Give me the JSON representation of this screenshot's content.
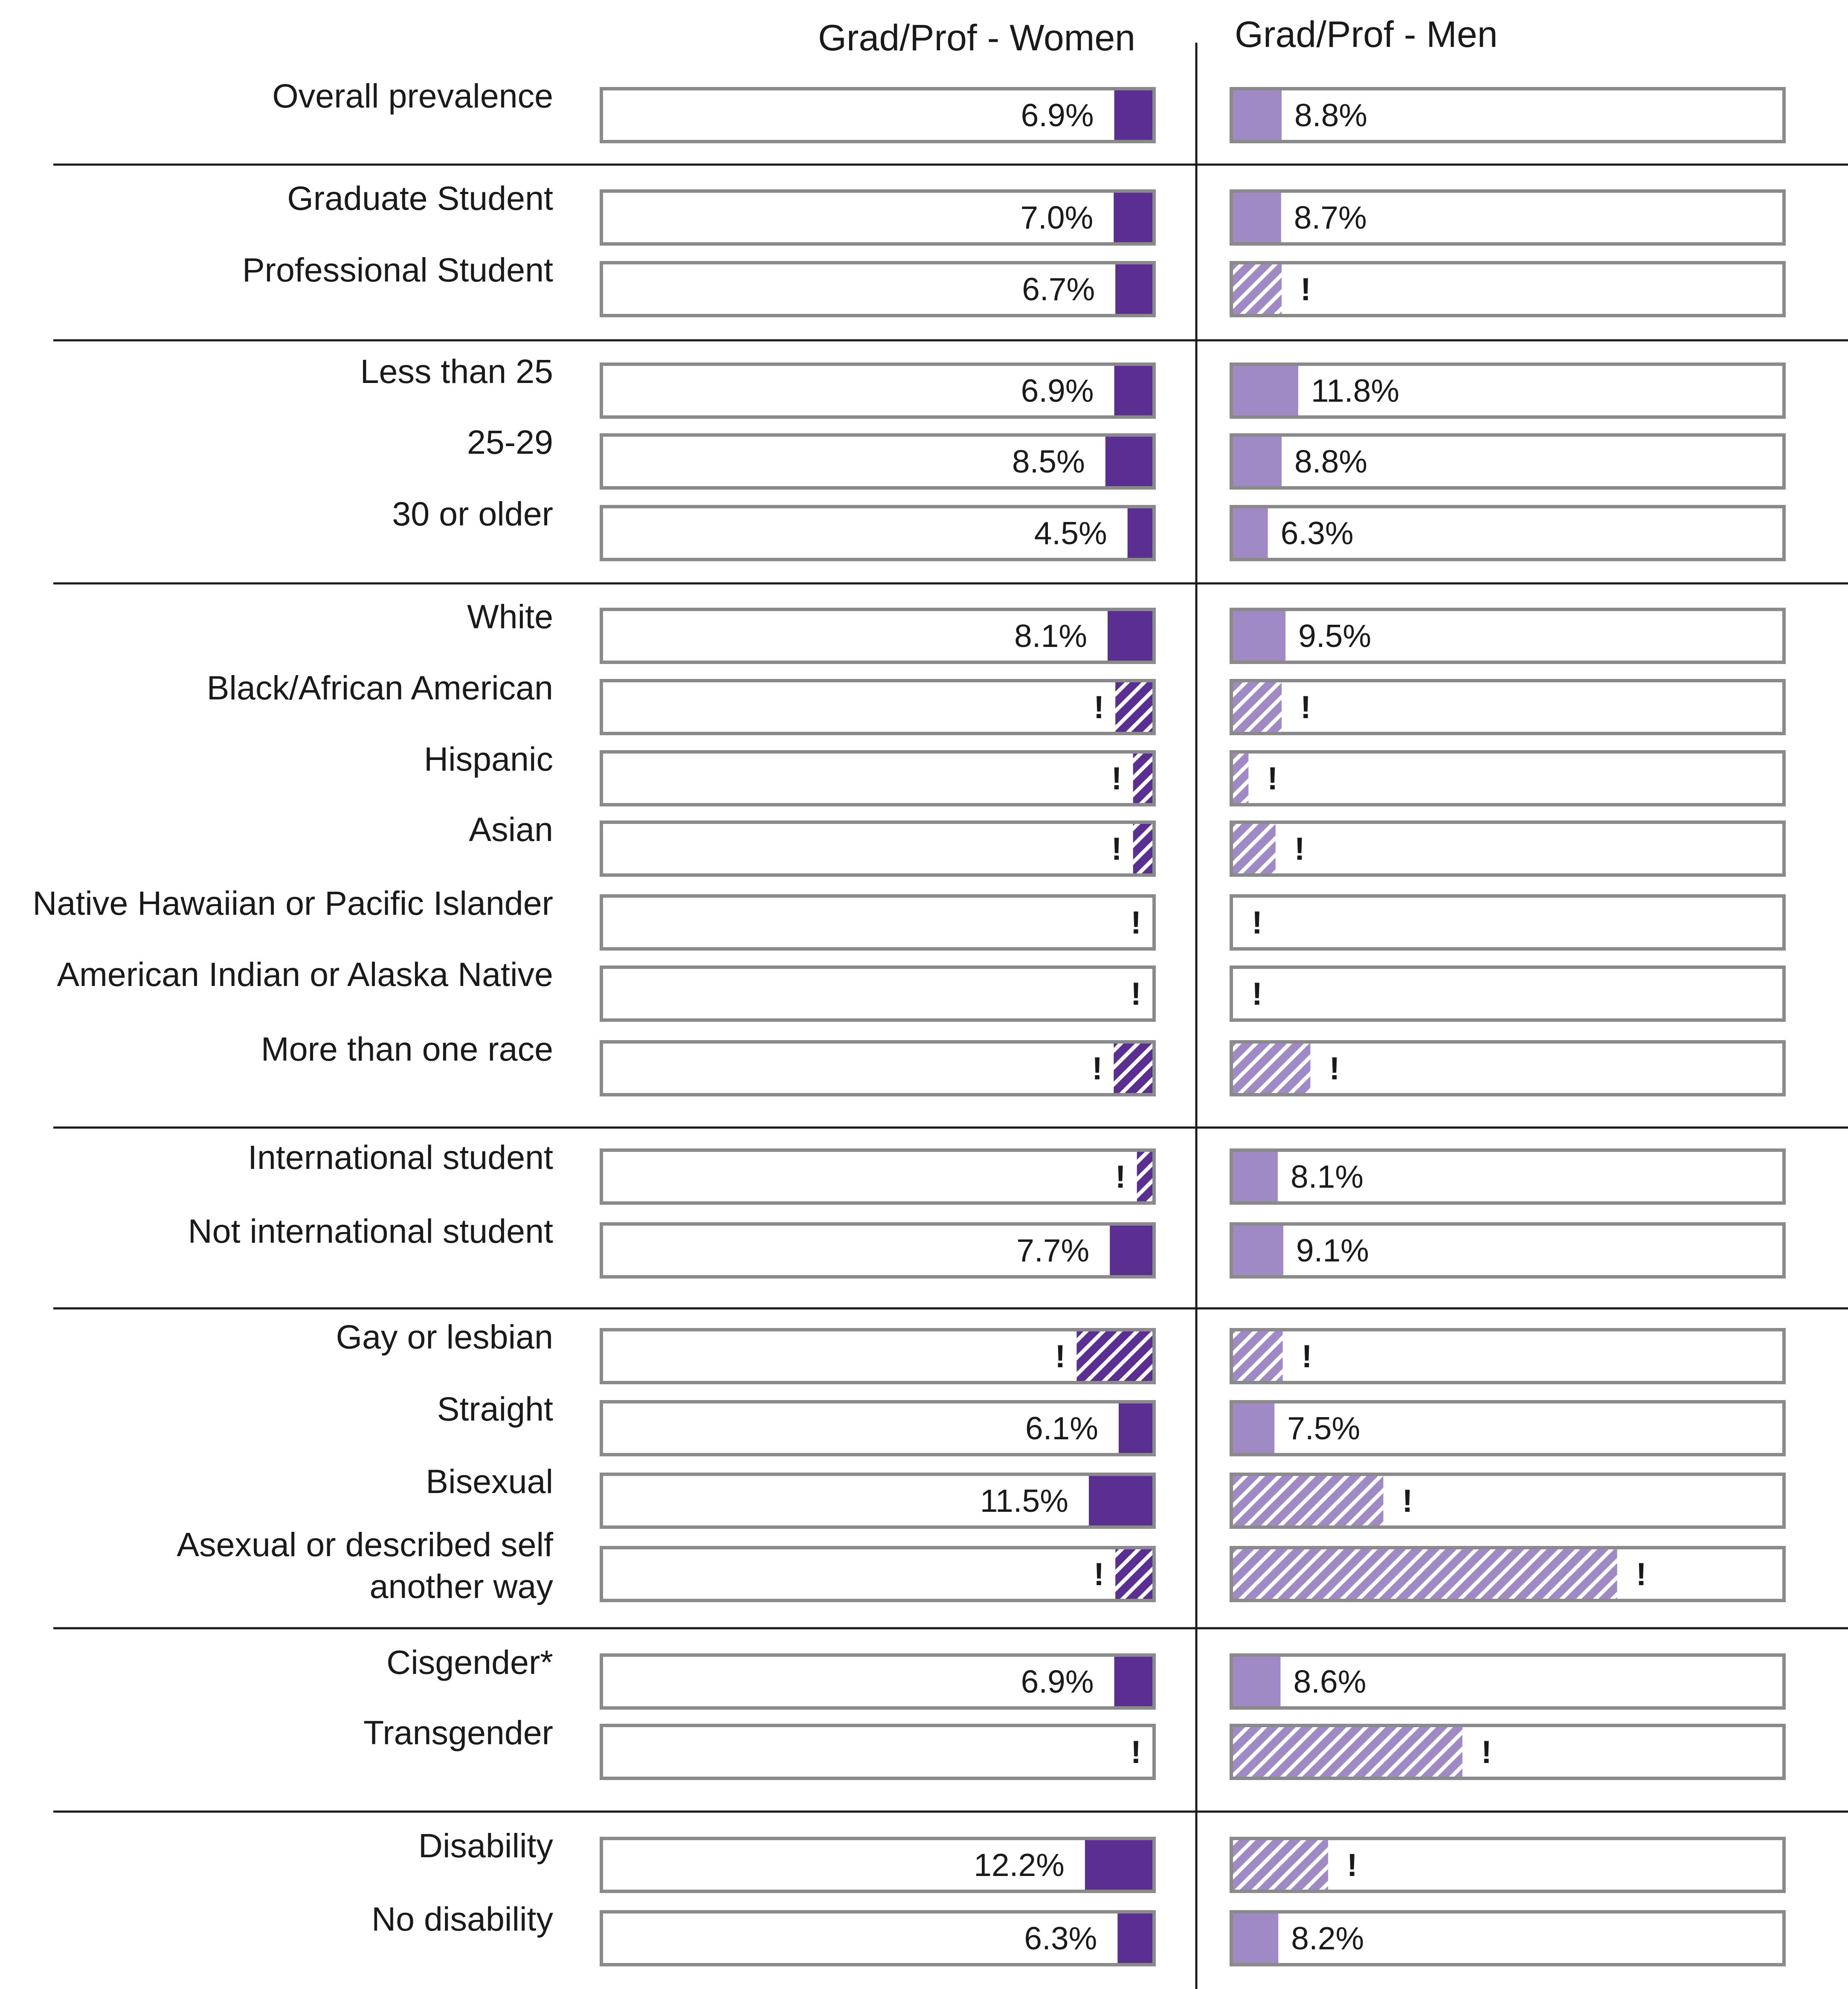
{
  "chart_data": {
    "type": "bar",
    "columns": [
      {
        "name": "Grad/Prof - Women",
        "color": "#5b2e91"
      },
      {
        "name": "Grad/Prof - Men",
        "color": "#9f8ac6"
      }
    ],
    "value_format": "%",
    "suppressed_marker": "!",
    "rows": [
      {
        "label": "Overall prevalence",
        "women": 6.9,
        "women_suppressed": false,
        "men": 8.8,
        "men_suppressed": false
      },
      {
        "label": "Graduate Student",
        "women": 7.0,
        "women_suppressed": false,
        "men": 8.7,
        "men_suppressed": false
      },
      {
        "label": "Professional Student",
        "women": 6.7,
        "women_suppressed": false,
        "men": 8.8,
        "men_suppressed": true
      },
      {
        "label": "Less than 25",
        "women": 6.9,
        "women_suppressed": false,
        "men": 11.8,
        "men_suppressed": false
      },
      {
        "label": "25-29",
        "women": 8.5,
        "women_suppressed": false,
        "men": 8.8,
        "men_suppressed": false
      },
      {
        "label": "30 or older",
        "women": 4.5,
        "women_suppressed": false,
        "men": 6.3,
        "men_suppressed": false
      },
      {
        "label": "White",
        "women": 8.1,
        "women_suppressed": false,
        "men": 9.5,
        "men_suppressed": false
      },
      {
        "label": "Black/African American",
        "women": 6.7,
        "women_suppressed": true,
        "men": 8.8,
        "men_suppressed": true
      },
      {
        "label": "Hispanic",
        "women": 3.5,
        "women_suppressed": true,
        "men": 2.8,
        "men_suppressed": true
      },
      {
        "label": "Asian",
        "women": 3.5,
        "women_suppressed": true,
        "men": 7.7,
        "men_suppressed": true
      },
      {
        "label": "Native Hawaiian or Pacific Islander",
        "women": 0,
        "women_suppressed": true,
        "men": 0,
        "men_suppressed": true
      },
      {
        "label": "American Indian or Alaska Native",
        "women": 0,
        "women_suppressed": true,
        "men": 0,
        "men_suppressed": true
      },
      {
        "label": "More than one race",
        "women": 7.0,
        "women_suppressed": true,
        "men": 14.0,
        "men_suppressed": true
      },
      {
        "label": "International student",
        "women": 2.8,
        "women_suppressed": true,
        "men": 8.1,
        "men_suppressed": false
      },
      {
        "label": "Not  international student",
        "women": 7.7,
        "women_suppressed": false,
        "men": 9.1,
        "men_suppressed": false
      },
      {
        "label": "Gay or lesbian",
        "women": 13.7,
        "women_suppressed": true,
        "men": 9.0,
        "men_suppressed": true
      },
      {
        "label": "Straight",
        "women": 6.1,
        "women_suppressed": false,
        "men": 7.5,
        "men_suppressed": false
      },
      {
        "label": "Bisexual",
        "women": 11.5,
        "women_suppressed": false,
        "men": 27.2,
        "men_suppressed": true
      },
      {
        "label": "Asexual or described self another way",
        "label_lines": [
          "Asexual or described self",
          "another way"
        ],
        "women": 6.7,
        "women_suppressed": true,
        "men": 69.5,
        "men_suppressed": true
      },
      {
        "label": "Cisgender*",
        "women": 6.9,
        "women_suppressed": false,
        "men": 8.6,
        "men_suppressed": false
      },
      {
        "label": "Transgender",
        "women": 0,
        "women_suppressed": true,
        "men": 41.5,
        "men_suppressed": true
      },
      {
        "label": "Disability",
        "women": 12.2,
        "women_suppressed": false,
        "men": 17.2,
        "men_suppressed": true
      },
      {
        "label": "No disability",
        "women": 6.3,
        "women_suppressed": false,
        "men": 8.2,
        "men_suppressed": false
      }
    ],
    "groups": [
      [
        0
      ],
      [
        1,
        2
      ],
      [
        3,
        4,
        5
      ],
      [
        6,
        7,
        8,
        9,
        10,
        11,
        12
      ],
      [
        13,
        14
      ],
      [
        15,
        16,
        17,
        18
      ],
      [
        19,
        20
      ],
      [
        21,
        22
      ]
    ],
    "xlim": [
      0,
      100
    ],
    "grid": false,
    "legend": "none"
  }
}
